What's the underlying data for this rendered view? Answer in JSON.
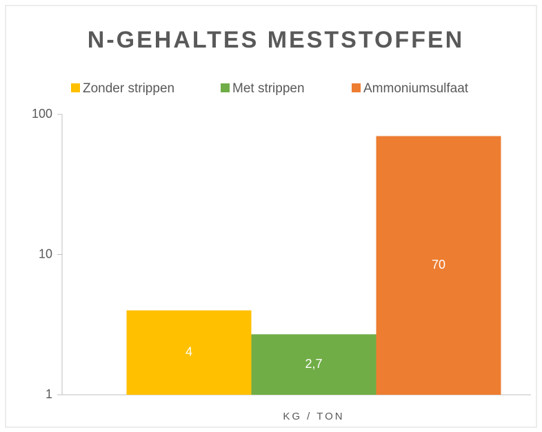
{
  "chart_data": {
    "type": "bar",
    "title": "N-GEHALTES MESTSTOFFEN",
    "categories": [
      "KG / TON"
    ],
    "series": [
      {
        "name": "Zonder strippen",
        "color": "#ffc000",
        "values": [
          4
        ]
      },
      {
        "name": "Met strippen",
        "color": "#70ad47",
        "values": [
          2.7
        ],
        "value_labels": [
          "2,7"
        ]
      },
      {
        "name": "Ammoniumsulfaat",
        "color": "#ed7d31",
        "values": [
          70
        ]
      }
    ],
    "ylim": [
      1,
      100
    ],
    "yticks": [
      1,
      10,
      100
    ],
    "log_scale": true,
    "grid": false,
    "legend": "top"
  }
}
